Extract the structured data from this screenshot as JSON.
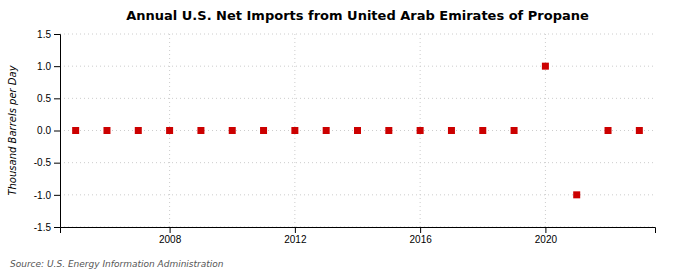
{
  "chart_data": {
    "type": "scatter",
    "title": "Annual U.S. Net Imports from United Arab Emirates of Propane",
    "y_label": "Thousand Barrels per Day",
    "source": "Source: U.S. Energy Information Administration",
    "x": [
      2005,
      2006,
      2007,
      2008,
      2009,
      2010,
      2011,
      2012,
      2013,
      2014,
      2015,
      2016,
      2017,
      2018,
      2019,
      2020,
      2021,
      2022,
      2023
    ],
    "values": [
      0,
      0,
      0,
      0,
      0,
      0,
      0,
      0,
      0,
      0,
      0,
      0,
      0,
      0,
      0,
      1.0,
      -1.0,
      0,
      0
    ],
    "color": "#cc0000",
    "marker": "square",
    "xlim": [
      2004.5,
      2023.5
    ],
    "xticks": [
      2008,
      2012,
      2016,
      2020
    ],
    "ylim": [
      -1.5,
      1.5
    ],
    "yticks": [
      -1.5,
      {
        "value": -1.0,
        "label": "-1.0"
      },
      -0.5,
      {
        "value": 0.0,
        "label": "0.0"
      },
      0.5,
      {
        "value": 1.0,
        "label": "1.0"
      },
      1.5
    ],
    "grid": true
  }
}
